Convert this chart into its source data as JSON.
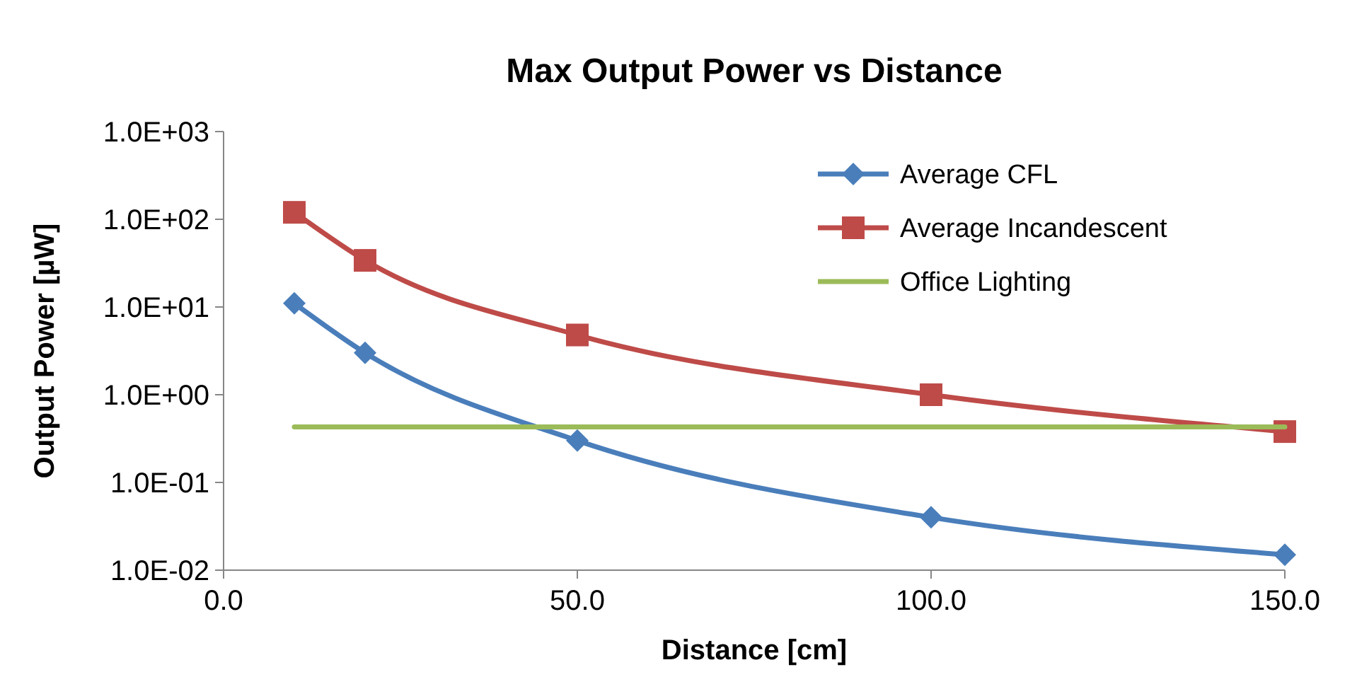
{
  "chart_data": {
    "type": "line",
    "title": "Max Output Power vs Distance",
    "xlabel": "Distance [cm]",
    "ylabel": "Output Power [µW]",
    "log": "y",
    "xlim": [
      0,
      150
    ],
    "xticks": [
      {
        "value": 0,
        "label": "0.0"
      },
      {
        "value": 50,
        "label": "50.0"
      },
      {
        "value": 100,
        "label": "100.0"
      },
      {
        "value": 150,
        "label": "150.0"
      }
    ],
    "ylim": [
      0.01,
      1000
    ],
    "yticks": [
      {
        "value": 0.01,
        "label": "1.0E-02"
      },
      {
        "value": 0.1,
        "label": "1.0E-01"
      },
      {
        "value": 1,
        "label": "1.0E+00"
      },
      {
        "value": 10,
        "label": "1.0E+01"
      },
      {
        "value": 100,
        "label": "1.0E+02"
      },
      {
        "value": 1000,
        "label": "1.0E+03"
      }
    ],
    "grid": false,
    "legend": "top right",
    "series": [
      {
        "name": "Average CFL",
        "color": "#4a7ebb",
        "marker": "diamond",
        "x": [
          10,
          20,
          50,
          100,
          150
        ],
        "values": [
          11,
          3,
          0.3,
          0.04,
          0.015
        ]
      },
      {
        "name": "Average Incandescent",
        "color": "#be4b48",
        "marker": "square",
        "x": [
          10,
          20,
          50,
          100,
          150
        ],
        "values": [
          120,
          34,
          4.8,
          1,
          0.38
        ]
      },
      {
        "name": "Office Lighting",
        "color": "#9bbb59",
        "marker": "none",
        "x": [
          10,
          150
        ],
        "values": [
          0.43,
          0.43
        ]
      }
    ]
  }
}
